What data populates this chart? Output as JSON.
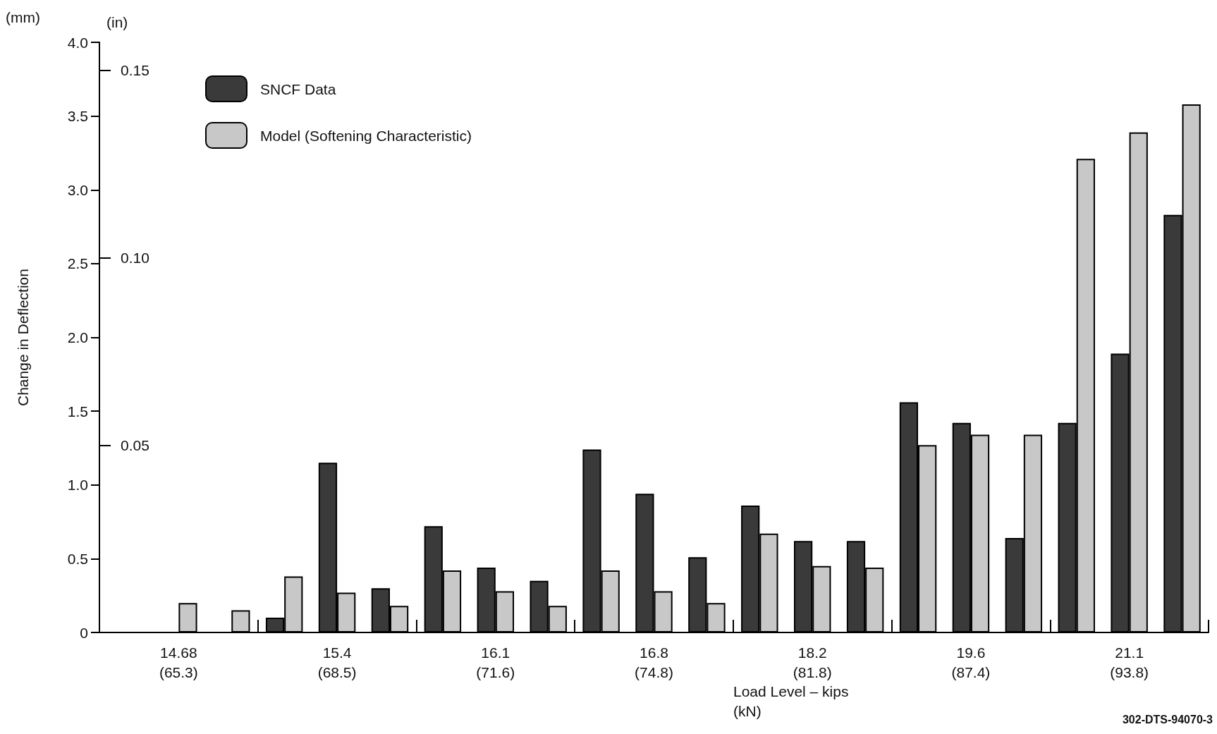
{
  "chart_data": {
    "type": "bar",
    "xlabel": "Load Level – kips\n(kN)",
    "ylabel": "Change in Deflection",
    "y2label": "(in)",
    "annotations": [
      "(mm)",
      "302-DTS-94070-3"
    ],
    "categories": [
      null,
      "14.68\n(65.3)",
      null,
      null,
      "15.4\n(68.5)",
      null,
      null,
      "16.1\n(71.6)",
      null,
      null,
      "16.8\n(74.8)",
      null,
      null,
      "18.2\n(81.8)",
      null,
      null,
      "19.6\n(87.4)",
      null,
      null,
      "21.1\n(93.8)",
      null
    ],
    "series": [
      {
        "name": "SNCF Data",
        "color": "#3a3a3a",
        "values": [
          null,
          null,
          null,
          0.1,
          1.15,
          0.3,
          0.72,
          0.44,
          0.35,
          1.24,
          0.94,
          0.51,
          0.86,
          0.62,
          0.62,
          1.56,
          1.42,
          0.64,
          1.42,
          1.89,
          2.83
        ]
      },
      {
        "name": "Model (Softening Characteristic)",
        "color": "#c8c8c8",
        "values": [
          null,
          0.2,
          0.15,
          0.38,
          0.27,
          0.18,
          0.42,
          0.28,
          0.18,
          0.42,
          0.28,
          0.2,
          0.67,
          0.45,
          0.44,
          1.27,
          1.34,
          1.34,
          3.21,
          3.39,
          3.58
        ]
      }
    ],
    "ylim": [
      0,
      4.0
    ],
    "yticks": [
      0,
      {
        "value": 0.5,
        "label": "0.5"
      },
      {
        "value": 1,
        "label": "1.0"
      },
      {
        "value": 1.5,
        "label": "1.5"
      },
      {
        "value": 2,
        "label": "2.0"
      },
      {
        "value": 2.5,
        "label": "2.5"
      },
      {
        "value": 3,
        "label": "3.0"
      },
      {
        "value": 3.5,
        "label": "3.5"
      },
      {
        "value": 4,
        "label": "4.0"
      }
    ],
    "y2lim": [
      0,
      0.1575
    ],
    "y2ticks": [
      0.05,
      {
        "value": 0.1,
        "label": "0.10"
      },
      0.15
    ],
    "grid": false,
    "legend": "top left"
  }
}
